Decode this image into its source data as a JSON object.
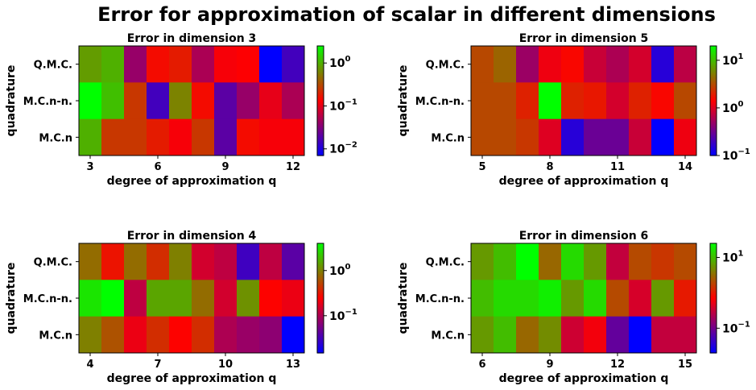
{
  "suptitle": "Error for approximation of scalar in different dimensions",
  "colors": {
    "low": "#0000ff",
    "mid": "#ff0000",
    "high": "#00ff00"
  },
  "chart_data": [
    {
      "type": "heatmap",
      "title": "Error in dimension 3",
      "xlabel": "degree of approximation q",
      "ylabel": "quadrature",
      "rows": [
        "Q.M.C.",
        "M.C.n-n.",
        "M.C.n"
      ],
      "x": [
        3,
        4,
        5,
        6,
        7,
        8,
        9,
        10,
        11,
        12
      ],
      "xticks": [
        3,
        6,
        9,
        12
      ],
      "color_scale": "log",
      "colorbar_range": [
        0.007,
        2.5
      ],
      "colorbar_ticks": [
        {
          "base": "10",
          "exp": "0",
          "value": 1
        },
        {
          "base": "10",
          "exp": "−1",
          "value": 0.1
        },
        {
          "base": "10",
          "exp": "−2",
          "value": 0.01
        }
      ],
      "values": [
        [
          0.8,
          1.0,
          0.04,
          0.15,
          0.18,
          0.05,
          0.12,
          0.13,
          0.007,
          0.015
        ],
        [
          2.5,
          1.2,
          0.25,
          0.015,
          0.6,
          0.15,
          0.02,
          0.04,
          0.1,
          0.05
        ],
        [
          1.0,
          0.25,
          0.25,
          0.18,
          0.12,
          0.25,
          0.02,
          0.15,
          0.12,
          0.12
        ]
      ]
    },
    {
      "type": "heatmap",
      "title": "Error in dimension 5",
      "xlabel": "degree of approximation q",
      "ylabel": "quadrature",
      "rows": [
        "Q.M.C.",
        "M.C.n-n.",
        "M.C.n"
      ],
      "x": [
        5,
        6,
        7,
        8,
        9,
        10,
        11,
        12,
        13,
        14
      ],
      "xticks": [
        5,
        8,
        11,
        14
      ],
      "color_scale": "log",
      "colorbar_range": [
        0.1,
        20
      ],
      "colorbar_ticks": [
        {
          "base": "10",
          "exp": "1",
          "value": 10
        },
        {
          "base": "10",
          "exp": "0",
          "value": 1
        },
        {
          "base": "10",
          "exp": "−1",
          "value": 0.1
        }
      ],
      "values": [
        [
          3.0,
          4.0,
          0.5,
          1.2,
          1.5,
          0.8,
          0.6,
          0.9,
          0.15,
          0.7
        ],
        [
          3.0,
          3.0,
          2.0,
          20,
          2.0,
          1.8,
          0.9,
          2.0,
          1.5,
          3.0
        ],
        [
          3.0,
          3.0,
          2.5,
          1.0,
          0.15,
          0.3,
          0.3,
          0.8,
          0.1,
          1.2
        ]
      ]
    },
    {
      "type": "heatmap",
      "title": "Error in dimension 4",
      "xlabel": "degree of approximation q",
      "ylabel": "quadrature",
      "rows": [
        "Q.M.C.",
        "M.C.n-n.",
        "M.C.n"
      ],
      "x": [
        4,
        5,
        6,
        7,
        8,
        9,
        10,
        11,
        12,
        13
      ],
      "xticks": [
        4,
        7,
        10,
        13
      ],
      "color_scale": "log",
      "colorbar_range": [
        0.015,
        4
      ],
      "colorbar_ticks": [
        {
          "base": "10",
          "exp": "0",
          "value": 1
        },
        {
          "base": "10",
          "exp": "−1",
          "value": 0.1
        }
      ],
      "values": [
        [
          0.8,
          0.3,
          0.8,
          0.4,
          1.0,
          0.15,
          0.12,
          0.03,
          0.12,
          0.04
        ],
        [
          3.0,
          4.0,
          0.12,
          1.5,
          1.5,
          0.8,
          0.15,
          1.2,
          0.25,
          0.2
        ],
        [
          1.0,
          0.6,
          0.2,
          0.4,
          0.25,
          0.4,
          0.1,
          0.08,
          0.07,
          0.015
        ]
      ]
    },
    {
      "type": "heatmap",
      "title": "Error in dimension 6",
      "xlabel": "degree of approximation q",
      "ylabel": "quadrature",
      "rows": [
        "Q.M.C.",
        "M.C.n-n.",
        "M.C.n"
      ],
      "x": [
        6,
        7,
        8,
        9,
        10,
        11,
        12,
        13,
        14,
        15
      ],
      "xticks": [
        6,
        9,
        12,
        15
      ],
      "color_scale": "log",
      "colorbar_range": [
        0.02,
        25
      ],
      "colorbar_ticks": [
        {
          "base": "10",
          "exp": "1",
          "value": 10
        },
        {
          "base": "10",
          "exp": "−1",
          "value": 0.1
        }
      ],
      "values": [
        [
          6.0,
          10,
          25,
          3.0,
          15,
          6.0,
          0.3,
          2.0,
          1.5,
          2.0
        ],
        [
          10,
          15,
          15,
          20,
          6.0,
          15,
          2.0,
          0.4,
          6.0,
          1.0
        ],
        [
          6.0,
          10,
          3.0,
          5.0,
          0.35,
          0.6,
          0.08,
          0.02,
          0.3,
          0.3
        ]
      ]
    }
  ]
}
